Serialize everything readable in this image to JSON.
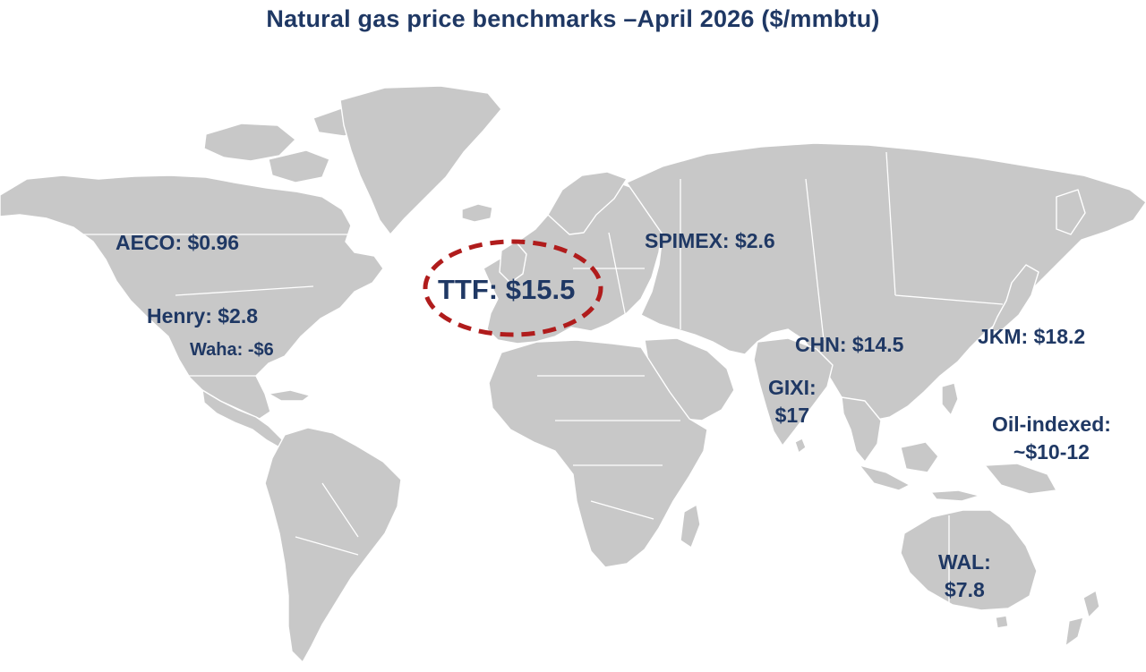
{
  "title": "Natural gas price benchmarks –April 2026 ($/mmbtu)",
  "colors": {
    "title": "#1f3864",
    "labels": "#1f3864",
    "land": "#c8c8c8",
    "highlight_ring": "#b01c1c"
  },
  "benchmarks": {
    "aeco": "AECO: $0.96",
    "henry": "Henry: $2.8",
    "waha": "Waha: -$6",
    "ttf": "TTF: $15.5",
    "spimex": "SPIMEX: $2.6",
    "chn": "CHN: $14.5",
    "jkm": "JKM: $18.2",
    "gixi_line1": "GIXI:",
    "gixi_line2": "$17",
    "oil_line1": "Oil-indexed:",
    "oil_line2": "~$10-12",
    "wal_line1": "WAL:",
    "wal_line2": "$7.8"
  }
}
